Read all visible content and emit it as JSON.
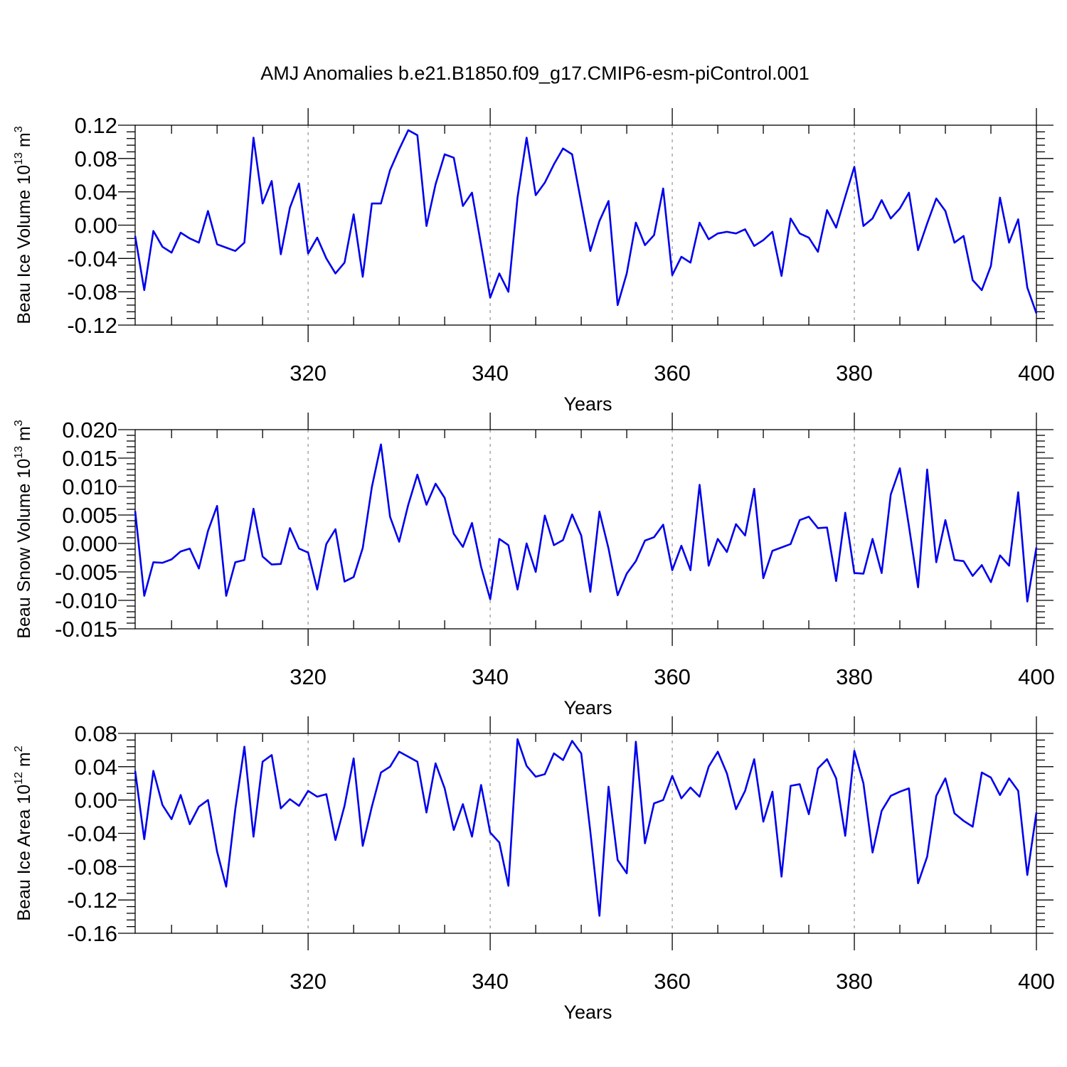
{
  "title": "AMJ Anomalies b.e21.B1850.f09_g17.CMIP6-esm-piControl.001",
  "colors": {
    "line": "#0000ee",
    "grid": "#999999",
    "axis": "#000000"
  },
  "chart_data": [
    {
      "type": "line",
      "ylabel": {
        "text": "Beau Ice Volume 10",
        "sup": "13",
        "unit": " m",
        "unit_sup": "3"
      },
      "xlabel": "Years",
      "xlim": [
        301,
        400
      ],
      "ylim": [
        -0.12,
        0.12
      ],
      "x_ticks": [
        320,
        340,
        360,
        380,
        400
      ],
      "y_ticks": [
        -0.12,
        -0.08,
        -0.04,
        0.0,
        0.04,
        0.08,
        0.12
      ],
      "y_tick_labels": [
        "-0.12",
        "-0.08",
        "-0.04",
        "0.00",
        "0.04",
        "0.08",
        "0.12"
      ],
      "grid": "x-dashed",
      "x_start": 301,
      "values": [
        -0.013,
        -0.078,
        -0.007,
        -0.026,
        -0.033,
        -0.009,
        -0.016,
        -0.021,
        0.017,
        -0.023,
        -0.027,
        -0.031,
        -0.021,
        0.105,
        0.026,
        0.053,
        -0.035,
        0.021,
        0.05,
        -0.034,
        -0.015,
        -0.04,
        -0.058,
        -0.045,
        0.013,
        -0.062,
        0.026,
        0.026,
        0.066,
        0.091,
        0.114,
        0.108,
        -0.001,
        0.049,
        0.085,
        0.081,
        0.023,
        0.039,
        -0.024,
        -0.087,
        -0.058,
        -0.08,
        0.033,
        0.105,
        0.036,
        0.051,
        0.073,
        0.092,
        0.085,
        0.027,
        -0.031,
        0.005,
        0.029,
        -0.096,
        -0.058,
        0.003,
        -0.024,
        -0.012,
        0.044,
        -0.06,
        -0.038,
        -0.045,
        0.003,
        -0.017,
        -0.01,
        -0.008,
        -0.01,
        -0.005,
        -0.025,
        -0.018,
        -0.008,
        -0.061,
        0.008,
        -0.01,
        -0.015,
        -0.032,
        0.018,
        -0.003,
        0.034,
        0.07,
        -0.001,
        0.008,
        0.03,
        0.008,
        0.02,
        0.039,
        -0.03,
        0.002,
        0.032,
        0.017,
        -0.021,
        -0.013,
        -0.066,
        -0.078,
        -0.049,
        0.033,
        -0.021,
        0.007,
        -0.075,
        -0.106
      ]
    },
    {
      "type": "line",
      "ylabel": {
        "text": "Beau Snow Volume 10",
        "sup": "13",
        "unit": " m",
        "unit_sup": "3"
      },
      "xlabel": "Years",
      "xlim": [
        301,
        400
      ],
      "ylim": [
        -0.015,
        0.02
      ],
      "x_ticks": [
        320,
        340,
        360,
        380,
        400
      ],
      "y_ticks": [
        -0.015,
        -0.01,
        -0.005,
        0.0,
        0.005,
        0.01,
        0.015,
        0.02
      ],
      "y_tick_labels": [
        "-0.015",
        "-0.010",
        "-0.005",
        "0.000",
        "0.005",
        "0.010",
        "0.015",
        "0.020"
      ],
      "grid": "x-dashed",
      "x_start": 301,
      "values": [
        0.0057,
        -0.0092,
        -0.0033,
        -0.0034,
        -0.0028,
        -0.0014,
        -0.0009,
        -0.0044,
        0.0022,
        0.0066,
        -0.0092,
        -0.0033,
        -0.0029,
        0.0061,
        -0.0023,
        -0.0037,
        -0.0036,
        0.0027,
        -0.0009,
        -0.0016,
        -0.0081,
        -0.0001,
        0.0025,
        -0.0067,
        -0.0059,
        -0.0008,
        0.0099,
        0.0174,
        0.0047,
        0.0003,
        0.0068,
        0.0121,
        0.0068,
        0.0105,
        0.008,
        0.0017,
        -0.0006,
        0.0036,
        -0.0041,
        -0.0098,
        0.0008,
        -0.0003,
        -0.0081,
        0.0,
        -0.005,
        0.0049,
        -0.0003,
        0.0006,
        0.0051,
        0.0014,
        -0.0085,
        0.0056,
        -0.0009,
        -0.0091,
        -0.0053,
        -0.0031,
        0.0005,
        0.0011,
        0.0033,
        -0.0047,
        -0.0004,
        -0.0047,
        0.0103,
        -0.0039,
        0.0008,
        -0.0015,
        0.0034,
        0.0014,
        0.0096,
        -0.0061,
        -0.0013,
        -0.0007,
        -0.0001,
        0.0041,
        0.0047,
        0.0027,
        0.0028,
        -0.0066,
        0.0054,
        -0.0052,
        -0.0053,
        0.0008,
        -0.0052,
        0.0086,
        0.0132,
        0.003,
        -0.0077,
        0.013,
        -0.0033,
        0.0041,
        -0.0029,
        -0.0031,
        -0.0057,
        -0.0038,
        -0.0068,
        -0.0021,
        -0.0039,
        0.009,
        -0.0102,
        -0.0007
      ]
    },
    {
      "type": "line",
      "ylabel": {
        "text": "Beau Ice Area 10",
        "sup": "12",
        "unit": " m",
        "unit_sup": "2"
      },
      "xlabel": "Years",
      "xlim": [
        301,
        400
      ],
      "ylim": [
        -0.16,
        0.08
      ],
      "x_ticks": [
        320,
        340,
        360,
        380,
        400
      ],
      "y_ticks": [
        -0.16,
        -0.12,
        -0.08,
        -0.04,
        0.0,
        0.04,
        0.08
      ],
      "y_tick_labels": [
        "-0.16",
        "-0.12",
        "-0.08",
        "-0.04",
        "0.00",
        "0.04",
        "0.08"
      ],
      "grid": "x-dashed",
      "x_start": 301,
      "values": [
        0.035,
        -0.047,
        0.035,
        -0.006,
        -0.023,
        0.006,
        -0.029,
        -0.008,
        0.0,
        -0.062,
        -0.104,
        -0.011,
        0.064,
        -0.044,
        0.046,
        0.054,
        -0.01,
        0.001,
        -0.007,
        0.011,
        0.004,
        0.007,
        -0.048,
        -0.007,
        0.05,
        -0.055,
        -0.008,
        0.033,
        0.04,
        0.058,
        0.052,
        0.046,
        -0.015,
        0.044,
        0.014,
        -0.036,
        -0.005,
        -0.044,
        0.018,
        -0.039,
        -0.051,
        -0.103,
        0.073,
        0.041,
        0.028,
        0.031,
        0.056,
        0.048,
        0.071,
        0.056,
        -0.038,
        -0.139,
        0.016,
        -0.072,
        -0.088,
        0.07,
        -0.052,
        -0.004,
        0.0,
        0.029,
        0.002,
        0.015,
        0.004,
        0.04,
        0.058,
        0.032,
        -0.011,
        0.011,
        0.049,
        -0.026,
        0.01,
        -0.092,
        0.017,
        0.019,
        -0.017,
        0.038,
        0.049,
        0.026,
        -0.043,
        0.059,
        0.02,
        -0.063,
        -0.013,
        0.005,
        0.01,
        0.014,
        -0.1,
        -0.068,
        0.005,
        0.026,
        -0.016,
        -0.025,
        -0.032,
        0.033,
        0.027,
        0.006,
        0.026,
        0.011,
        -0.09,
        -0.015
      ]
    }
  ]
}
